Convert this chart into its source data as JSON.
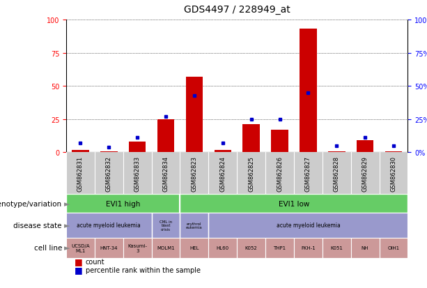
{
  "title": "GDS4497 / 228949_at",
  "samples": [
    "GSM862831",
    "GSM862832",
    "GSM862833",
    "GSM862834",
    "GSM862823",
    "GSM862824",
    "GSM862825",
    "GSM862826",
    "GSM862827",
    "GSM862828",
    "GSM862829",
    "GSM862830"
  ],
  "count_values": [
    2,
    0.5,
    8,
    25,
    57,
    2,
    21,
    17,
    93,
    1,
    9,
    1
  ],
  "percentile_values": [
    7,
    4,
    11,
    27,
    43,
    7,
    25,
    25,
    45,
    5,
    11,
    5
  ],
  "ylim": [
    0,
    100
  ],
  "yticks": [
    0,
    25,
    50,
    75,
    100
  ],
  "bar_color": "#CC0000",
  "percentile_color": "#0000CC",
  "bg_color": "#FFFFFF",
  "genotype_color": "#66CC66",
  "disease_color": "#9999CC",
  "cell_color": "#CC9999",
  "gsm_bg_color": "#CCCCCC",
  "label_fontsize": 7.5,
  "tick_fontsize": 7,
  "sample_fontsize": 6,
  "cell_fontsize": 5,
  "disease_fontsize": 5.5,
  "row_label_fontsize": 7.5,
  "cell_labels": [
    "UCSD/A\nML1",
    "HNT-34",
    "Kasumi-\n3",
    "MOLM1",
    "HEL",
    "HL60",
    "K052",
    "THP1",
    "FKH-1",
    "K051",
    "NH",
    "OIH1"
  ]
}
